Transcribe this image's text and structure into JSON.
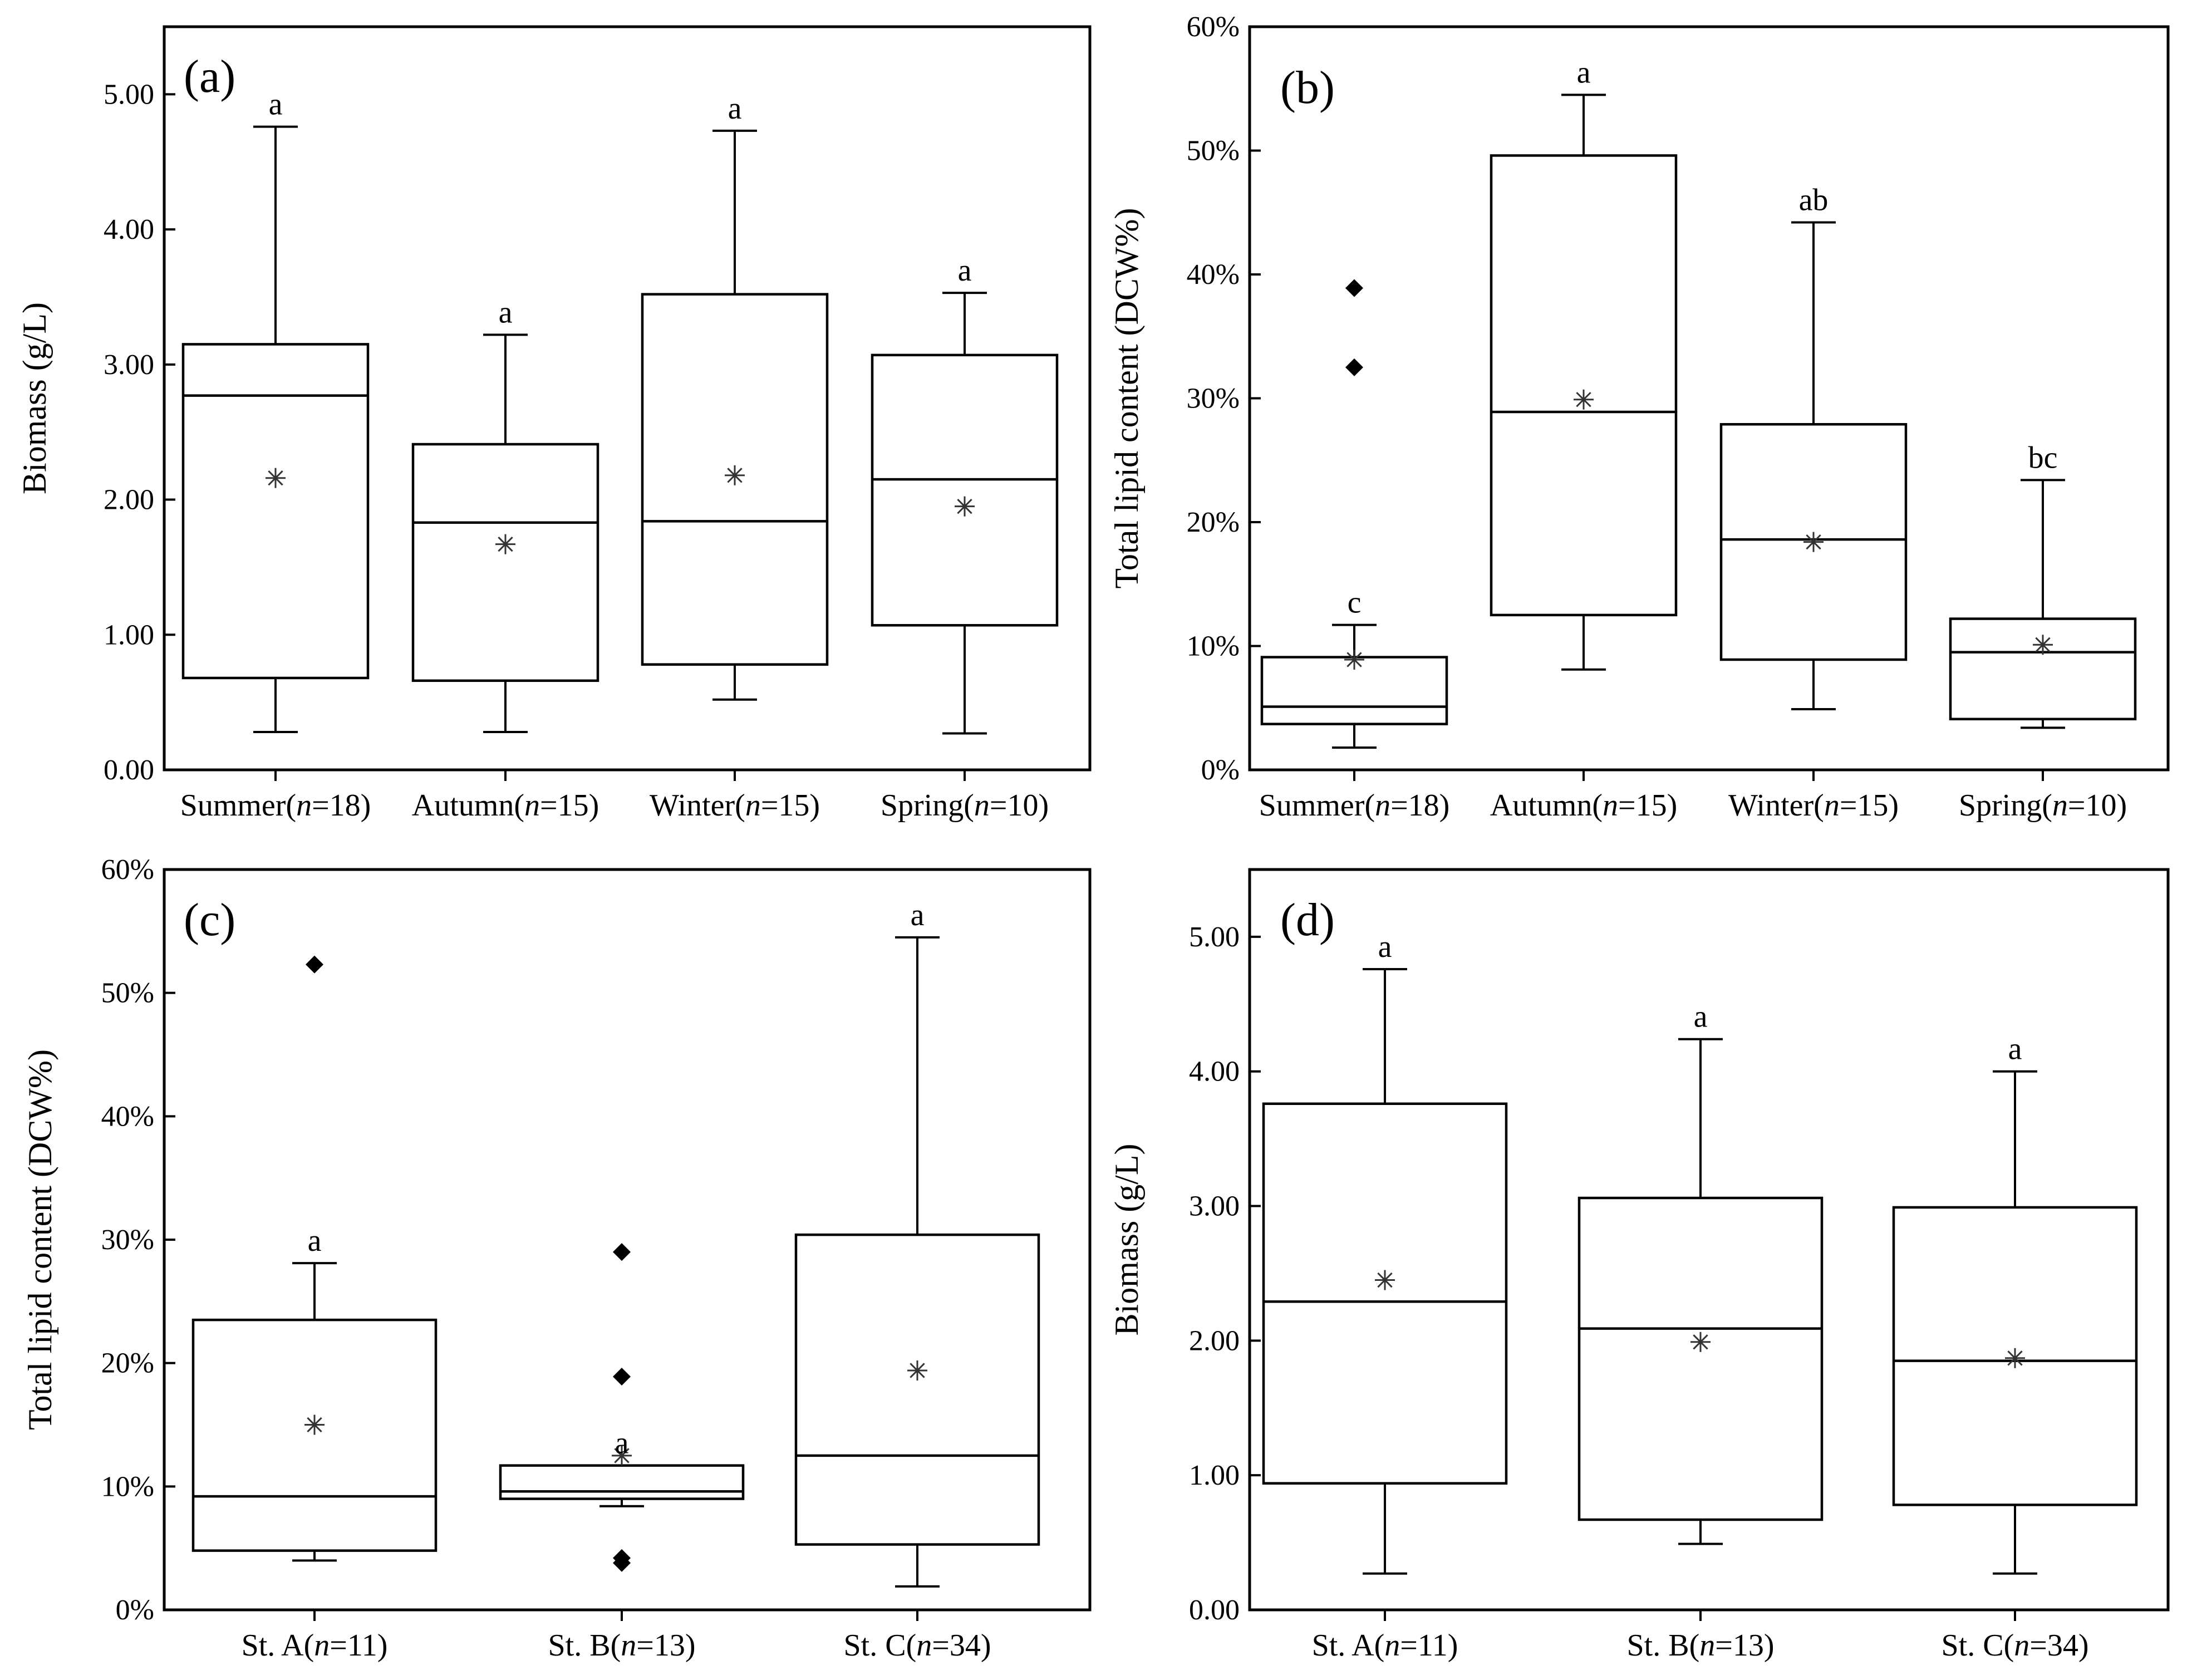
{
  "colors": {
    "ink": "#000000",
    "mean": "#333333",
    "background": "#ffffff"
  },
  "chart_data": [
    {
      "panel": "(a)",
      "type": "box",
      "ylabel": "Biomass (g/L)",
      "ylim": [
        0,
        5.5
      ],
      "yticks": [
        0,
        1,
        2,
        3,
        4,
        5
      ],
      "ytick_labels": [
        "0.00",
        "1.00",
        "2.00",
        "3.00",
        "4.00",
        "5.00"
      ],
      "categories": [
        {
          "name": "Summer",
          "n": "n",
          "eq": "=18"
        },
        {
          "name": "Autumn",
          "n": "n",
          "eq": "=15"
        },
        {
          "name": "Winter",
          "n": "n",
          "eq": "=15"
        },
        {
          "name": "Spring",
          "n": "n",
          "eq": "=10"
        }
      ],
      "boxes": [
        {
          "whisker_low": 0.28,
          "q1": 0.68,
          "median": 2.77,
          "q3": 3.15,
          "whisker_high": 4.76,
          "mean": 2.16,
          "outliers": [],
          "sig": "a"
        },
        {
          "whisker_low": 0.28,
          "q1": 0.66,
          "median": 1.83,
          "q3": 2.41,
          "whisker_high": 3.22,
          "mean": 1.67,
          "outliers": [],
          "sig": "a"
        },
        {
          "whisker_low": 0.52,
          "q1": 0.78,
          "median": 1.84,
          "q3": 3.52,
          "whisker_high": 4.73,
          "mean": 2.18,
          "outliers": [],
          "sig": "a"
        },
        {
          "whisker_low": 0.27,
          "q1": 1.07,
          "median": 2.15,
          "q3": 3.07,
          "whisker_high": 3.53,
          "mean": 1.95,
          "outliers": [],
          "sig": "a"
        }
      ]
    },
    {
      "panel": "(b)",
      "type": "box",
      "ylabel": "Total lipid content (DCW%)",
      "ylim": [
        0,
        60
      ],
      "yticks": [
        0,
        10,
        20,
        30,
        40,
        50,
        60
      ],
      "ytick_labels": [
        "0%",
        "10%",
        "20%",
        "30%",
        "40%",
        "50%",
        "60%"
      ],
      "categories": [
        {
          "name": "Summer",
          "n": "n",
          "eq": "=18"
        },
        {
          "name": "Autumn",
          "n": "n",
          "eq": "=15"
        },
        {
          "name": "Winter",
          "n": "n",
          "eq": "=15"
        },
        {
          "name": "Spring",
          "n": "n",
          "eq": "=10"
        }
      ],
      "boxes": [
        {
          "whisker_low": 1.8,
          "q1": 3.7,
          "median": 5.1,
          "q3": 9.1,
          "whisker_high": 11.7,
          "mean": 8.9,
          "outliers": [
            32.5,
            38.9
          ],
          "sig": "c"
        },
        {
          "whisker_low": 8.1,
          "q1": 12.5,
          "median": 28.9,
          "q3": 49.6,
          "whisker_high": 54.5,
          "mean": 29.9,
          "outliers": [],
          "sig": "a"
        },
        {
          "whisker_low": 4.9,
          "q1": 8.9,
          "median": 18.6,
          "q3": 27.9,
          "whisker_high": 44.2,
          "mean": 18.4,
          "outliers": [],
          "sig": "ab"
        },
        {
          "whisker_low": 3.4,
          "q1": 4.1,
          "median": 9.5,
          "q3": 12.2,
          "whisker_high": 23.4,
          "mean": 10.1,
          "outliers": [],
          "sig": "bc"
        }
      ]
    },
    {
      "panel": "(c)",
      "type": "box",
      "ylabel": "Total lipid content (DCW%)",
      "ylim": [
        0,
        60
      ],
      "yticks": [
        0,
        10,
        20,
        30,
        40,
        50,
        60
      ],
      "ytick_labels": [
        "0%",
        "10%",
        "20%",
        "30%",
        "40%",
        "50%",
        "60%"
      ],
      "categories": [
        {
          "name": "St. A",
          "n": "n",
          "eq": "=11"
        },
        {
          "name": "St. B",
          "n": "n",
          "eq": "=13"
        },
        {
          "name": "St. C",
          "n": "n",
          "eq": "=34"
        }
      ],
      "boxes": [
        {
          "whisker_low": 4.0,
          "q1": 4.8,
          "median": 9.2,
          "q3": 23.5,
          "whisker_high": 28.1,
          "mean": 15.0,
          "outliers": [
            52.3
          ],
          "sig": "a"
        },
        {
          "whisker_low": 8.4,
          "q1": 9.0,
          "median": 9.6,
          "q3": 11.7,
          "whisker_high": 11.7,
          "mean": 12.5,
          "outliers": [
            3.8,
            4.2,
            18.9,
            29.0
          ],
          "sig": "a"
        },
        {
          "whisker_low": 1.9,
          "q1": 5.3,
          "median": 12.5,
          "q3": 30.4,
          "whisker_high": 54.5,
          "mean": 19.4,
          "outliers": [],
          "sig": "a"
        }
      ]
    },
    {
      "panel": "(d)",
      "type": "box",
      "ylabel": "Biomass (g/L)",
      "ylim": [
        0,
        5.5
      ],
      "yticks": [
        0,
        1,
        2,
        3,
        4,
        5
      ],
      "ytick_labels": [
        "0.00",
        "1.00",
        "2.00",
        "3.00",
        "4.00",
        "5.00"
      ],
      "categories": [
        {
          "name": "St. A",
          "n": "n",
          "eq": "=11"
        },
        {
          "name": "St. B",
          "n": "n",
          "eq": "=13"
        },
        {
          "name": "St. C",
          "n": "n",
          "eq": "=34"
        }
      ],
      "boxes": [
        {
          "whisker_low": 0.27,
          "q1": 0.94,
          "median": 2.29,
          "q3": 3.76,
          "whisker_high": 4.76,
          "mean": 2.45,
          "outliers": [],
          "sig": "a"
        },
        {
          "whisker_low": 0.49,
          "q1": 0.67,
          "median": 2.09,
          "q3": 3.06,
          "whisker_high": 4.24,
          "mean": 1.99,
          "outliers": [],
          "sig": "a"
        },
        {
          "whisker_low": 0.27,
          "q1": 0.78,
          "median": 1.85,
          "q3": 2.99,
          "whisker_high": 4.0,
          "mean": 1.87,
          "outliers": [],
          "sig": "a"
        }
      ]
    }
  ]
}
